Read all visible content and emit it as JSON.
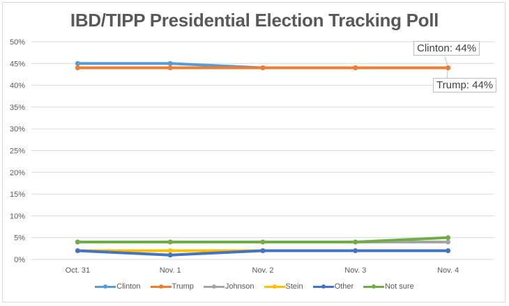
{
  "chart_data": {
    "type": "line",
    "title": "IBD/TIPP Presidential Election Tracking Poll",
    "xlabel": "",
    "ylabel": "",
    "categories": [
      "Oct. 31",
      "Nov. 1",
      "Nov. 2",
      "Nov. 3",
      "Nov. 4"
    ],
    "ylim": [
      0,
      50
    ],
    "yticks": [
      "0%",
      "5%",
      "10%",
      "15%",
      "20%",
      "25%",
      "30%",
      "35%",
      "40%",
      "45%",
      "50%"
    ],
    "ytick_values": [
      0,
      5,
      10,
      15,
      20,
      25,
      30,
      35,
      40,
      45,
      50
    ],
    "grid": true,
    "legend_position": "bottom",
    "series": [
      {
        "name": "Clinton",
        "color": "#5b9bd5",
        "values": [
          45,
          45,
          44,
          44,
          44
        ]
      },
      {
        "name": "Trump",
        "color": "#ed7d31",
        "values": [
          44,
          44,
          44,
          44,
          44
        ]
      },
      {
        "name": "Johnson",
        "color": "#a5a5a5",
        "values": [
          4,
          4,
          4,
          4,
          4
        ]
      },
      {
        "name": "Stein",
        "color": "#ffc000",
        "values": [
          2,
          2,
          2,
          2,
          2
        ]
      },
      {
        "name": "Other",
        "color": "#4472c4",
        "values": [
          2,
          1,
          2,
          2,
          2
        ]
      },
      {
        "name": "Not sure",
        "color": "#70ad47",
        "values": [
          4,
          4,
          4,
          4,
          5
        ]
      }
    ],
    "annotations": [
      {
        "series": "Clinton",
        "category": "Nov. 4",
        "text": "Clinton:  44%"
      },
      {
        "series": "Trump",
        "category": "Nov. 4",
        "text": "Trump:  44%"
      }
    ]
  }
}
